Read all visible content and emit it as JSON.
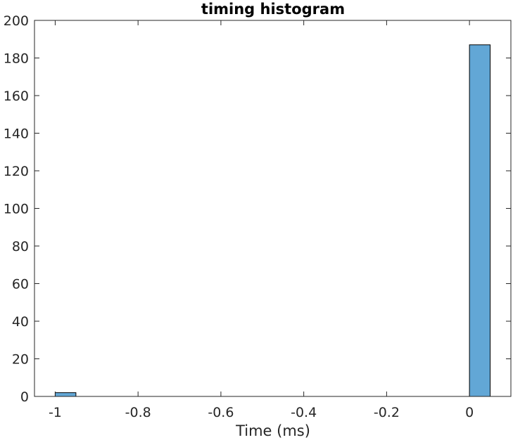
{
  "chart_data": {
    "type": "bar",
    "title": "timing histogram",
    "xlabel": "Time (ms)",
    "ylabel": "",
    "xlim": [
      -1.05,
      0.1
    ],
    "ylim": [
      0,
      200
    ],
    "bin_width": 0.05,
    "bins": [
      {
        "x_start": -1.0,
        "x_end": -0.95,
        "count": 2
      },
      {
        "x_start": 0.0,
        "x_end": 0.05,
        "count": 187
      }
    ],
    "x_ticks": [
      {
        "value": -1,
        "label": "-1"
      },
      {
        "value": -0.8,
        "label": "-0.8"
      },
      {
        "value": -0.6,
        "label": "-0.6"
      },
      {
        "value": -0.4,
        "label": "-0.4"
      },
      {
        "value": -0.2,
        "label": "-0.2"
      },
      {
        "value": 0,
        "label": "0"
      }
    ],
    "y_ticks": [
      {
        "value": 0,
        "label": "0"
      },
      {
        "value": 20,
        "label": "20"
      },
      {
        "value": 40,
        "label": "40"
      },
      {
        "value": 60,
        "label": "60"
      },
      {
        "value": 80,
        "label": "80"
      },
      {
        "value": 100,
        "label": "100"
      },
      {
        "value": 120,
        "label": "120"
      },
      {
        "value": 140,
        "label": "140"
      },
      {
        "value": 160,
        "label": "160"
      },
      {
        "value": 180,
        "label": "180"
      },
      {
        "value": 200,
        "label": "200"
      }
    ],
    "grid": false,
    "bar_color": "#62a7d6",
    "edge_color": "#000000",
    "axis_color": "#262626"
  }
}
